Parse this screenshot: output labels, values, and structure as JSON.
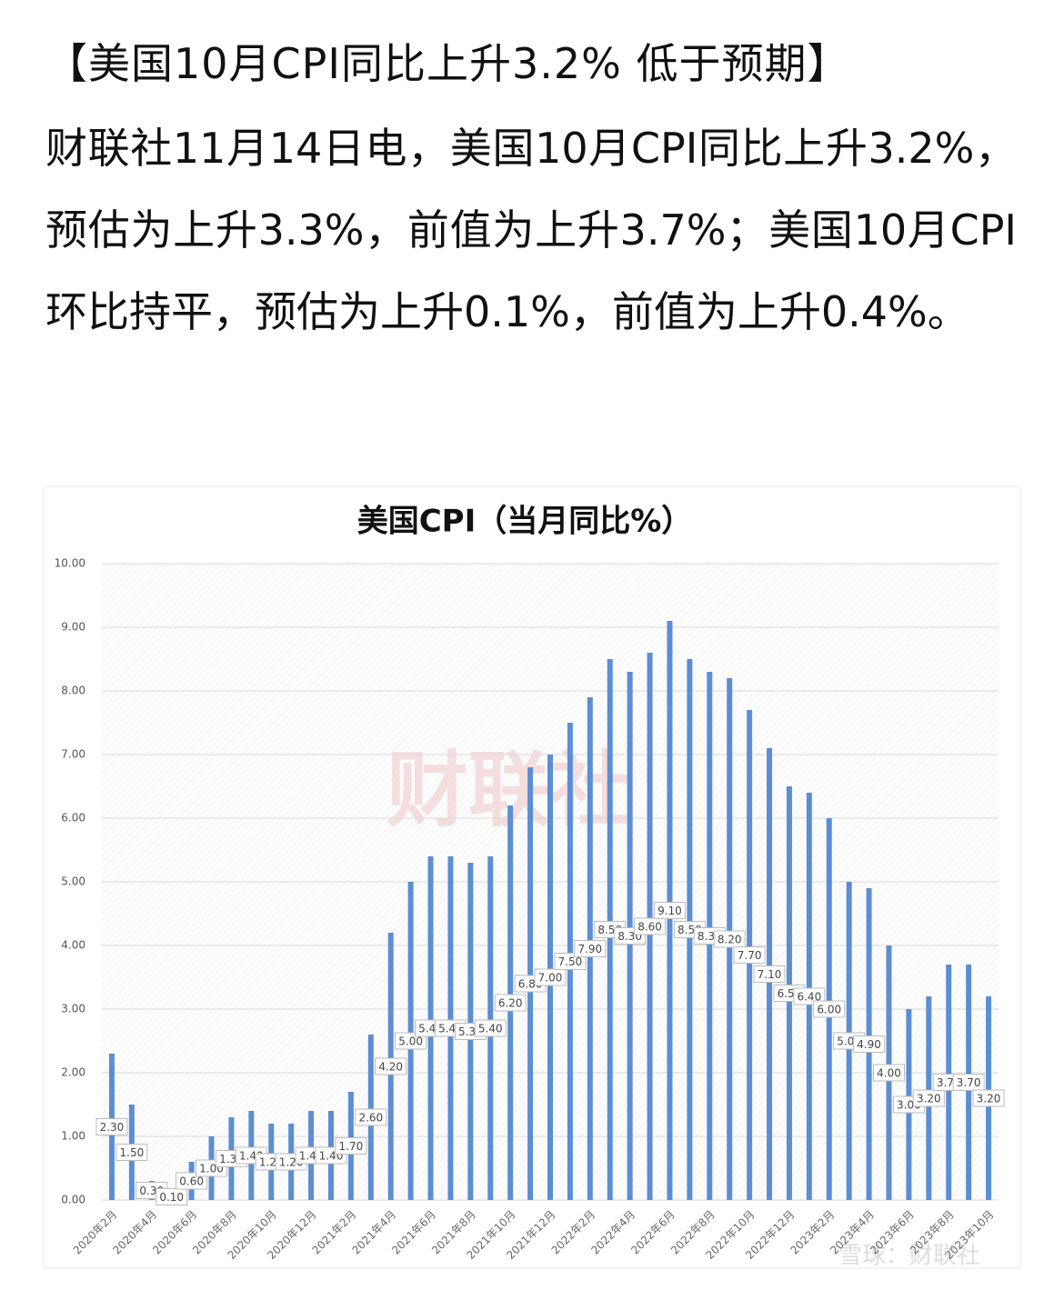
{
  "article": {
    "title": "【美国10月CPI同比上升3.2% 低于预期】",
    "body": "财联社11月14日电，美国10月CPI同比上升3.2%，预估为上升3.3%，前值为上升3.7%；美国10月CPI环比持平，预估为上升0.1%，前值为上升0.4%。"
  },
  "watermarks": [
    "财联社",
    "雪球：财联社"
  ],
  "chart_data": {
    "type": "bar",
    "title": "美国CPI（当月同比%）",
    "categories": [
      "2020年2月",
      null,
      "2020年4月",
      null,
      "2020年6月",
      null,
      "2020年8月",
      null,
      "2020年10月",
      null,
      "2020年12月",
      null,
      "2021年2月",
      null,
      "2021年4月",
      null,
      "2021年6月",
      null,
      "2021年8月",
      null,
      "2021年10月",
      null,
      "2021年12月",
      null,
      "2022年2月",
      null,
      "2022年4月",
      null,
      "2022年6月",
      null,
      "2022年8月",
      null,
      "2022年10月",
      null,
      "2022年12月",
      null,
      "2023年2月",
      null,
      "2023年4月",
      null,
      "2023年6月",
      null,
      "2023年8月",
      null,
      "2023年10月"
    ],
    "values": [
      2.3,
      1.5,
      0.3,
      0.1,
      0.6,
      1.0,
      1.3,
      1.4,
      1.2,
      1.2,
      1.4,
      1.4,
      1.7,
      2.6,
      4.2,
      5.0,
      5.4,
      5.4,
      5.3,
      5.4,
      6.2,
      6.8,
      7.0,
      7.5,
      7.9,
      8.5,
      8.3,
      8.6,
      9.1,
      8.5,
      8.3,
      8.2,
      7.7,
      7.1,
      6.5,
      6.4,
      6.0,
      5.0,
      4.9,
      4.0,
      3.0,
      3.2,
      3.7,
      3.7,
      3.2
    ],
    "value_labels": [
      "2.30",
      "1.50",
      "0.30",
      "0.10",
      "0.60",
      "1.00",
      "1.30",
      "1.40",
      "1.20",
      "1.20",
      "1.40",
      "1.40",
      "1.70",
      "2.60",
      "4.20",
      "5.00",
      "5.40",
      "5.40",
      "5.30",
      "5.40",
      "6.20",
      "6.80",
      "7.00",
      "7.50",
      "7.90",
      "8.50",
      "8.30",
      "8.60",
      "9.10",
      "8.50",
      "8.30",
      "8.20",
      "7.70",
      "7.10",
      "6.50",
      "6.40",
      "6.00",
      "5.00",
      "4.90",
      "4.00",
      "3.00",
      "3.20",
      "3.70",
      "3.70",
      "3.20"
    ],
    "color": "#5b8ed2",
    "ylim": [
      0,
      10
    ],
    "yticks": [
      {
        "value": 0,
        "label": "0.00"
      },
      {
        "value": 1,
        "label": "1.00"
      },
      {
        "value": 2,
        "label": "2.00"
      },
      {
        "value": 3,
        "label": "3.00"
      },
      {
        "value": 4,
        "label": "4.00"
      },
      {
        "value": 5,
        "label": "5.00"
      },
      {
        "value": 6,
        "label": "6.00"
      },
      {
        "value": 7,
        "label": "7.00"
      },
      {
        "value": 8,
        "label": "8.00"
      },
      {
        "value": 9,
        "label": "9.00"
      },
      {
        "value": 10,
        "label": "10.00"
      }
    ],
    "grid": true
  }
}
